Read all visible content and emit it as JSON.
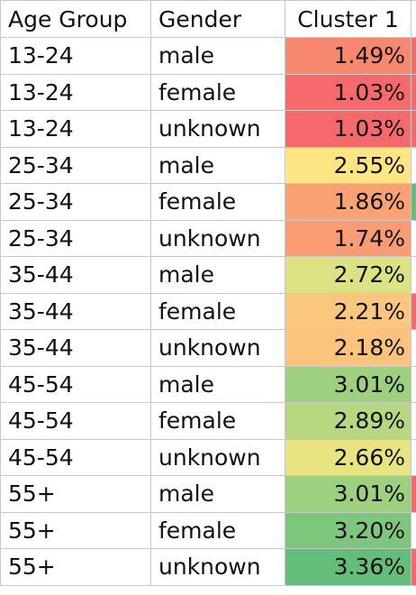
{
  "table": {
    "headers": {
      "age_group": "Age Group",
      "gender": "Gender",
      "cluster": "Cluster 1"
    },
    "rows": [
      {
        "age_group": "13-24",
        "gender": "male",
        "value": "1.49%",
        "fill": "#f8896f",
        "edge": "#f8696b"
      },
      {
        "age_group": "13-24",
        "gender": "female",
        "value": "1.03%",
        "fill": "#f8696b",
        "edge": "#f8696b"
      },
      {
        "age_group": "13-24",
        "gender": "unknown",
        "value": "1.03%",
        "fill": "#f8696b",
        "edge": "#f8696b"
      },
      {
        "age_group": "25-34",
        "gender": "male",
        "value": "2.55%",
        "fill": "#fce583",
        "edge": "#ffffff"
      },
      {
        "age_group": "25-34",
        "gender": "female",
        "value": "1.86%",
        "fill": "#f9a375",
        "edge": "#63be7b"
      },
      {
        "age_group": "25-34",
        "gender": "unknown",
        "value": "1.74%",
        "fill": "#f99b73",
        "edge": "#ffffff"
      },
      {
        "age_group": "35-44",
        "gender": "male",
        "value": "2.72%",
        "fill": "#dde283",
        "edge": "#ffffff"
      },
      {
        "age_group": "35-44",
        "gender": "female",
        "value": "2.21%",
        "fill": "#fbc67d",
        "edge": "#f8696b"
      },
      {
        "age_group": "35-44",
        "gender": "unknown",
        "value": "2.18%",
        "fill": "#fbc37c",
        "edge": "#ffffff"
      },
      {
        "age_group": "45-54",
        "gender": "male",
        "value": "3.01%",
        "fill": "#9dd07f",
        "edge": "#ffffff"
      },
      {
        "age_group": "45-54",
        "gender": "female",
        "value": "2.89%",
        "fill": "#b7d881",
        "edge": "#ffffff"
      },
      {
        "age_group": "45-54",
        "gender": "unknown",
        "value": "2.66%",
        "fill": "#e8e482",
        "edge": "#ffffff"
      },
      {
        "age_group": "55+",
        "gender": "male",
        "value": "3.01%",
        "fill": "#9dd07f",
        "edge": "#f8696b"
      },
      {
        "age_group": "55+",
        "gender": "female",
        "value": "3.20%",
        "fill": "#7dc77d",
        "edge": "#ffffff"
      },
      {
        "age_group": "55+",
        "gender": "unknown",
        "value": "3.36%",
        "fill": "#63be7b",
        "edge": "#f8696b"
      }
    ]
  }
}
